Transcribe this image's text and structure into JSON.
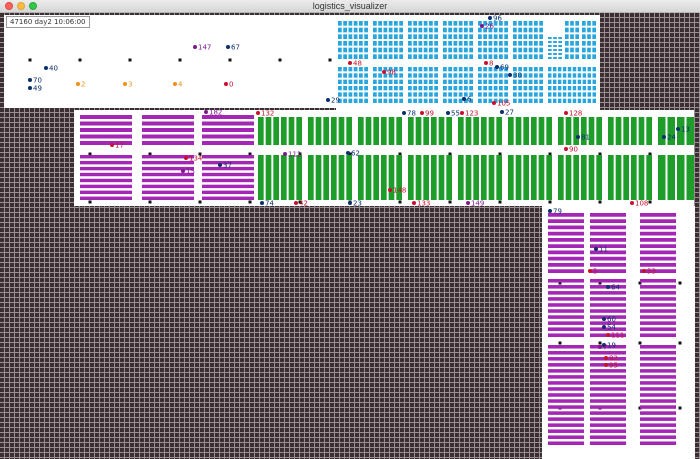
{
  "window": {
    "title": "logistics_visualizer"
  },
  "status": {
    "clock": "47160 day2 10:06:00"
  },
  "colors": {
    "floor_grid": "#9a8f93",
    "floor_cell": "#3c2f33",
    "clear_floor": "#ffffff",
    "pillar": "#111111",
    "rack_cyan": "#29a6dd",
    "rack_green": "#1e9d2a",
    "rack_magenta": "#a326b5",
    "agent_navy": "#0a2f6e",
    "agent_crimson": "#c8102e",
    "agent_orange": "#f28e1c",
    "agent_purple": "#7d1a8c"
  },
  "robots": [
    {
      "id": "147",
      "c": "purple"
    },
    {
      "id": "67",
      "c": "navy"
    },
    {
      "id": "40",
      "c": "navy"
    },
    {
      "id": "70",
      "c": "navy"
    },
    {
      "id": "49",
      "c": "navy"
    },
    {
      "id": "2",
      "c": "orange"
    },
    {
      "id": "3",
      "c": "orange"
    },
    {
      "id": "4",
      "c": "orange"
    },
    {
      "id": "0",
      "c": "crimson"
    },
    {
      "id": "29",
      "c": "navy"
    },
    {
      "id": "96",
      "c": "navy"
    },
    {
      "id": "26",
      "c": "purple"
    },
    {
      "id": "48",
      "c": "crimson"
    },
    {
      "id": "98",
      "c": "crimson"
    },
    {
      "id": "30",
      "c": "navy"
    },
    {
      "id": "69",
      "c": "navy"
    },
    {
      "id": "27",
      "c": "navy"
    },
    {
      "id": "8",
      "c": "crimson"
    },
    {
      "id": "105",
      "c": "crimson"
    },
    {
      "id": "182",
      "c": "purple"
    },
    {
      "id": "132",
      "c": "crimson"
    },
    {
      "id": "78",
      "c": "navy"
    },
    {
      "id": "99",
      "c": "crimson"
    },
    {
      "id": "55",
      "c": "navy"
    },
    {
      "id": "123",
      "c": "crimson"
    },
    {
      "id": "128",
      "c": "crimson"
    },
    {
      "id": "24",
      "c": "navy"
    },
    {
      "id": "13",
      "c": "navy"
    },
    {
      "id": "134",
      "c": "crimson"
    },
    {
      "id": "112",
      "c": "purple"
    },
    {
      "id": "62",
      "c": "navy"
    },
    {
      "id": "90",
      "c": "crimson"
    },
    {
      "id": "148",
      "c": "crimson"
    },
    {
      "id": "74",
      "c": "navy"
    },
    {
      "id": "42",
      "c": "crimson"
    },
    {
      "id": "23",
      "c": "navy"
    },
    {
      "id": "133",
      "c": "crimson"
    },
    {
      "id": "149",
      "c": "purple"
    },
    {
      "id": "79",
      "c": "navy"
    },
    {
      "id": "108",
      "c": "crimson"
    },
    {
      "id": "17",
      "c": "crimson"
    },
    {
      "id": "15",
      "c": "purple"
    },
    {
      "id": "37",
      "c": "navy"
    },
    {
      "id": "81",
      "c": "navy"
    },
    {
      "id": "60",
      "c": "navy"
    },
    {
      "id": "54",
      "c": "navy"
    },
    {
      "id": "53",
      "c": "crimson"
    },
    {
      "id": "64",
      "c": "navy"
    },
    {
      "id": "19",
      "c": "navy"
    },
    {
      "id": "111",
      "c": "crimson"
    },
    {
      "id": "92",
      "c": "crimson"
    },
    {
      "id": "95",
      "c": "crimson"
    },
    {
      "id": "11",
      "c": "navy"
    },
    {
      "id": "5",
      "c": "crimson"
    },
    {
      "id": "6",
      "c": "navy"
    },
    {
      "id": "7",
      "c": "purple"
    }
  ]
}
